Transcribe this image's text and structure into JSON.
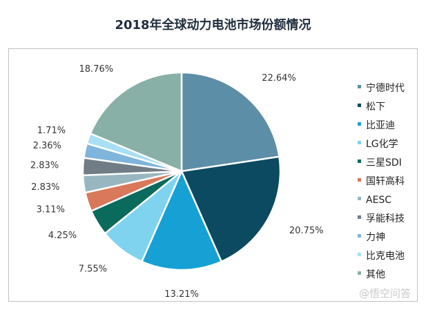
{
  "chart_data": {
    "type": "pie",
    "title": "2018年全球动力电池市场份额情况",
    "start_angle_deg": 0,
    "direction": "clockwise",
    "legend_position": "right",
    "slices": [
      {
        "label": "宁德时代",
        "value": 22.64,
        "display": "22.64%",
        "color": "#5d8ea8"
      },
      {
        "label": "松下",
        "value": 20.75,
        "display": "20.75%",
        "color": "#0b4a61"
      },
      {
        "label": "比亚迪",
        "value": 13.21,
        "display": "13.21%",
        "color": "#16a0d4"
      },
      {
        "label": "LG化学",
        "value": 7.55,
        "display": "7.55%",
        "color": "#7fd3ee"
      },
      {
        "label": "三星SDI",
        "value": 4.25,
        "display": "4.25%",
        "color": "#0a6a5c"
      },
      {
        "label": "国轩高科",
        "value": 3.11,
        "display": "3.11%",
        "color": "#d9785a"
      },
      {
        "label": "AESC",
        "value": 2.83,
        "display": "2.83%",
        "color": "#97b6c0"
      },
      {
        "label": "孚能科技",
        "value": 2.83,
        "display": "2.83%",
        "color": "#707c86"
      },
      {
        "label": "力神",
        "value": 2.36,
        "display": "2.36%",
        "color": "#7fb5dc"
      },
      {
        "label": "比克电池",
        "value": 1.71,
        "display": "1.71%",
        "color": "#a8dff5"
      },
      {
        "label": "其他",
        "value": 18.76,
        "display": "18.76%",
        "color": "#88b0a6"
      }
    ]
  },
  "watermark": "@悟空问答"
}
